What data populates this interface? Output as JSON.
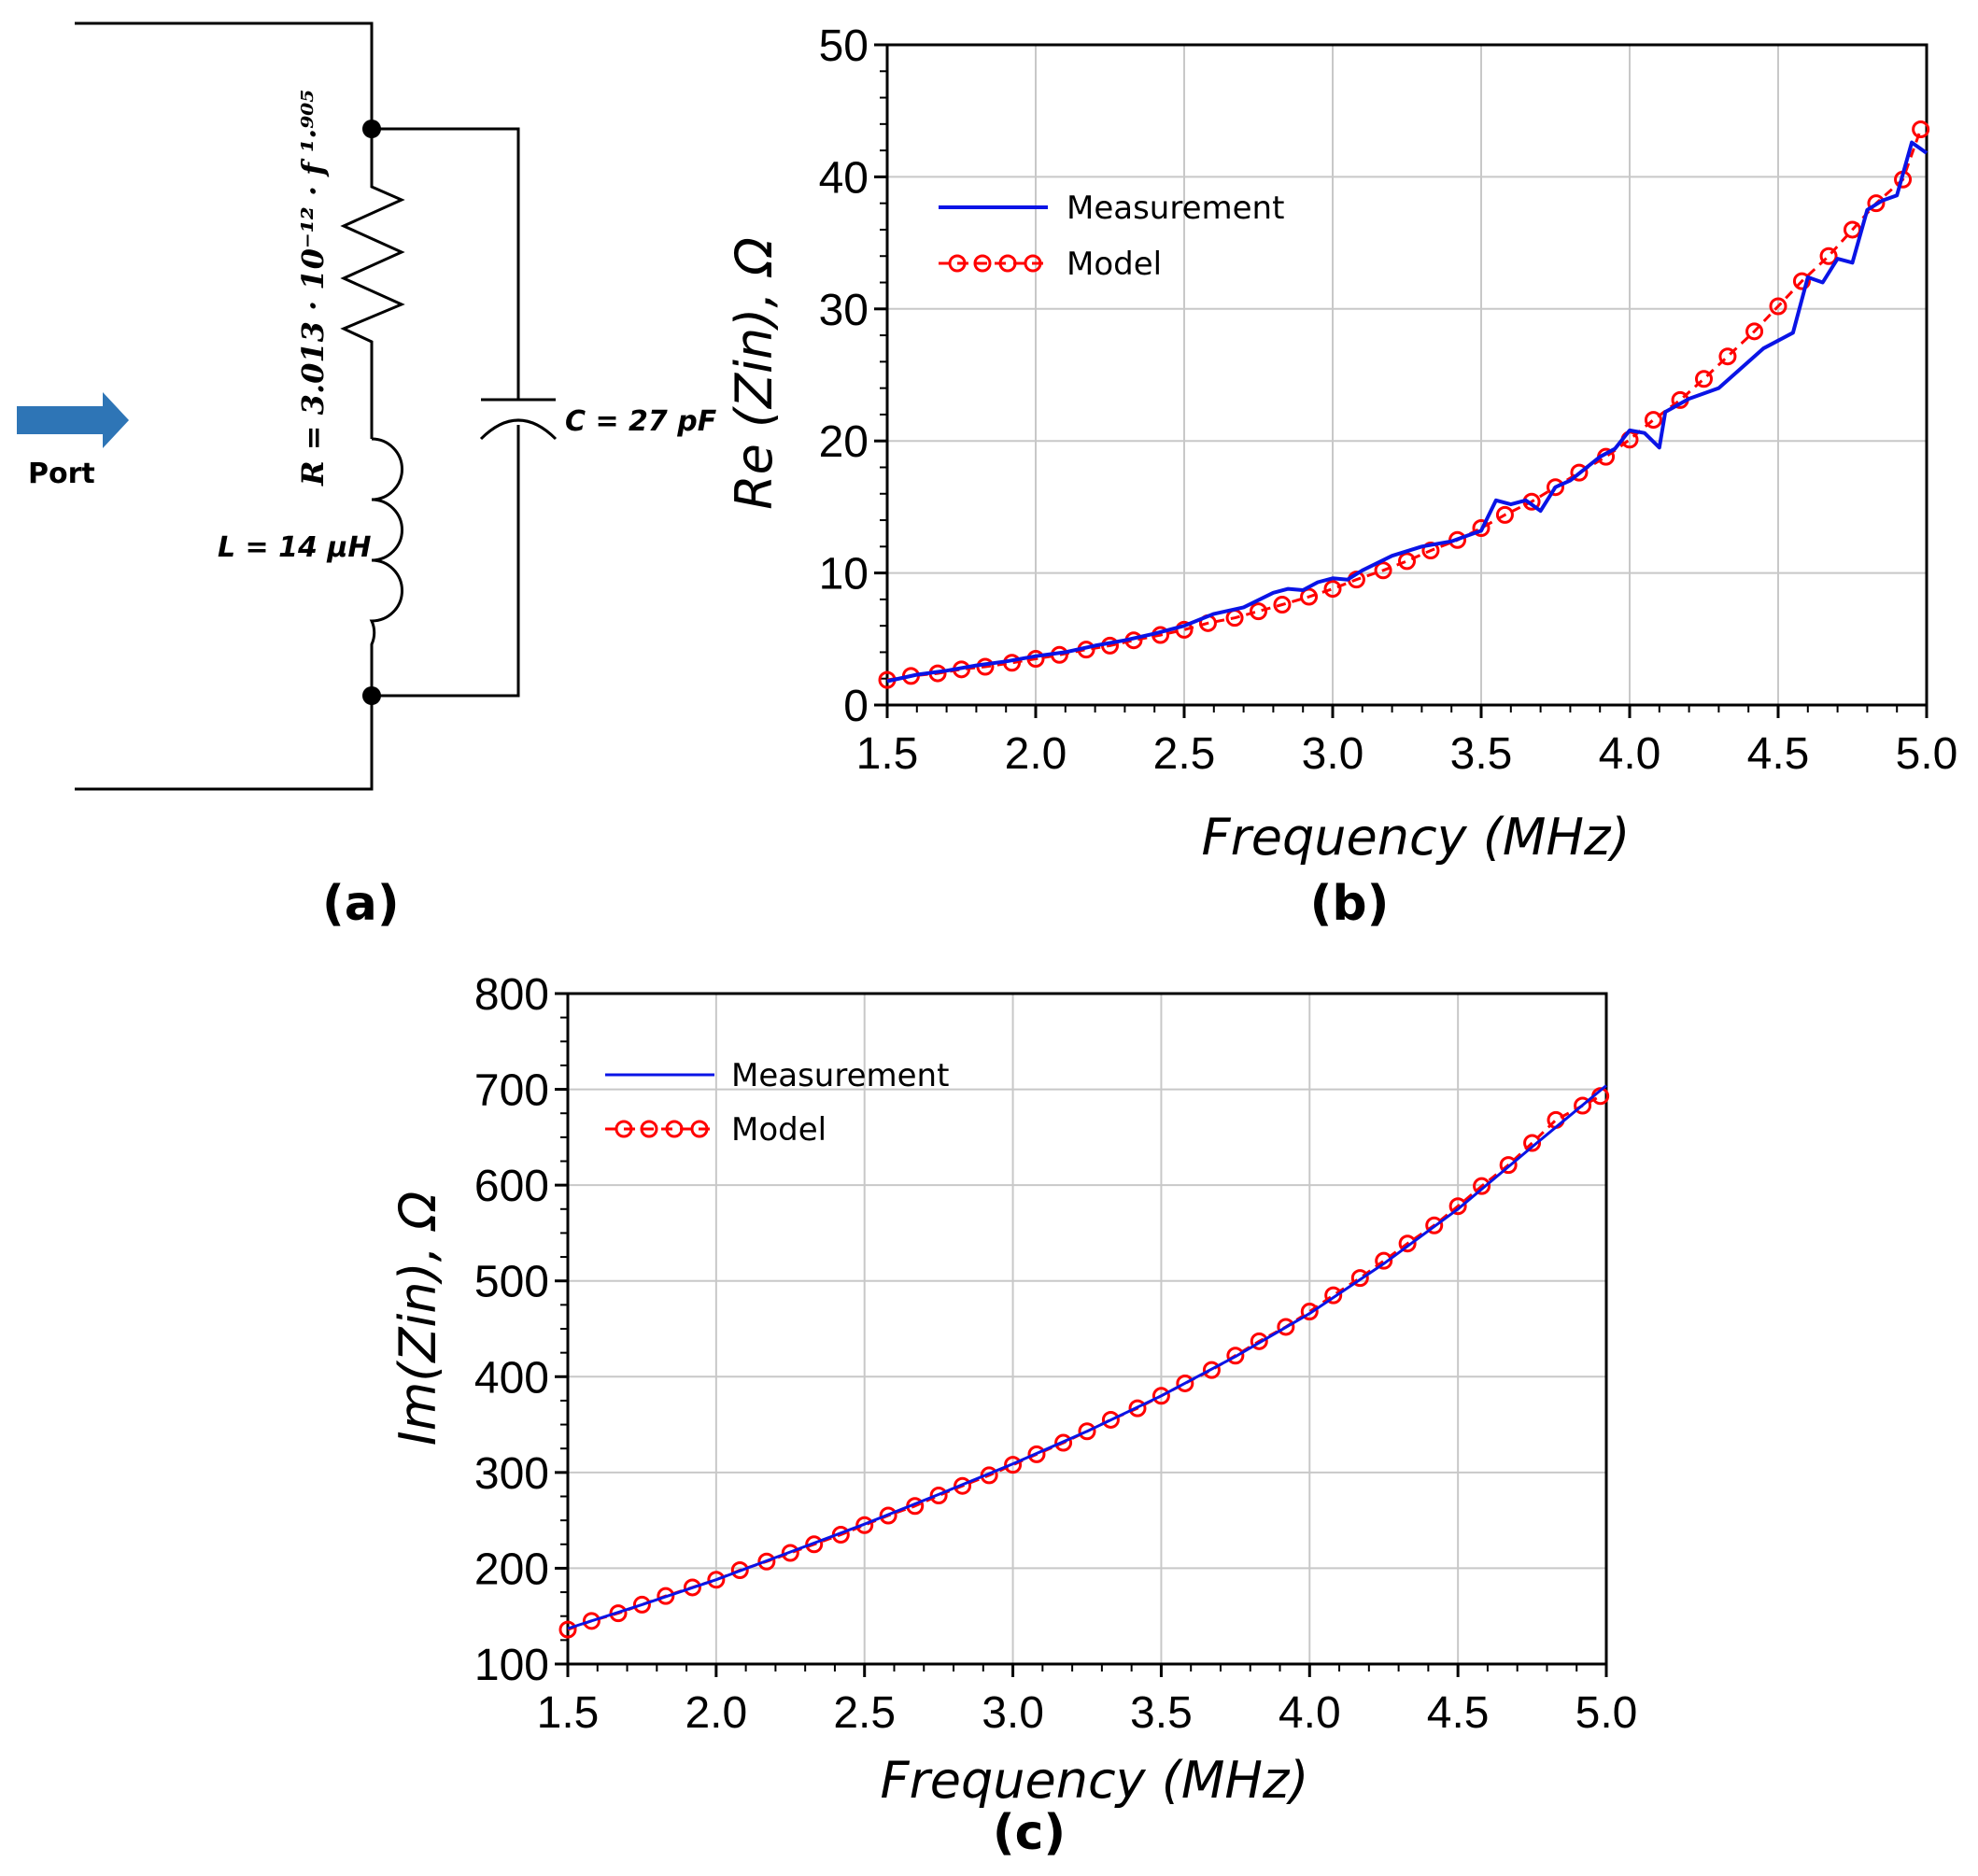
{
  "circuit": {
    "port_label": "Port",
    "resistor_label": "R =  3.013 · 10⁻¹² · f ¹·⁹⁰⁵",
    "capacitor_label": "C = 27 pF",
    "inductor_label": "L = 14 μH",
    "panel_label": "(a)",
    "colors": {
      "wire": "#000000",
      "arrow": "#2e75b6"
    }
  },
  "chart_data": [
    {
      "id": "re",
      "type": "line",
      "title": "",
      "panel_label": "(b)",
      "xlabel": "Frequency (MHz)",
      "ylabel": "Re (Zin), Ω",
      "xlim": [
        1.5,
        5.0
      ],
      "ylim": [
        0,
        50
      ],
      "xticks": [
        "1.5",
        "2.0",
        "2.5",
        "3.0",
        "3.5",
        "4.0",
        "4.5",
        "5.0"
      ],
      "yticks": [
        "0",
        "10",
        "20",
        "30",
        "40",
        "50"
      ],
      "grid": true,
      "legend_position": "top-left",
      "series": [
        {
          "name": "Measurement",
          "color": "#0a14e6",
          "marker": "none",
          "x": [
            1.5,
            1.6,
            1.7,
            1.8,
            1.9,
            2.0,
            2.1,
            2.2,
            2.3,
            2.4,
            2.5,
            2.6,
            2.7,
            2.8,
            2.85,
            2.9,
            2.95,
            3.0,
            3.05,
            3.1,
            3.2,
            3.3,
            3.4,
            3.45,
            3.5,
            3.55,
            3.6,
            3.65,
            3.7,
            3.75,
            3.8,
            3.9,
            3.95,
            4.0,
            4.05,
            4.1,
            4.12,
            4.2,
            4.3,
            4.4,
            4.45,
            4.55,
            4.6,
            4.65,
            4.7,
            4.75,
            4.8,
            4.85,
            4.9,
            4.95,
            5.0
          ],
          "values": [
            1.8,
            2.3,
            2.6,
            3.0,
            3.3,
            3.7,
            4.0,
            4.5,
            4.9,
            5.4,
            6.0,
            6.9,
            7.4,
            8.5,
            8.8,
            8.7,
            9.3,
            9.6,
            9.5,
            10.2,
            11.3,
            12.0,
            12.4,
            12.8,
            13.2,
            15.5,
            15.2,
            15.5,
            14.7,
            16.5,
            17.0,
            18.8,
            19.4,
            20.8,
            20.6,
            19.5,
            22.2,
            23.2,
            24.0,
            26.0,
            27.0,
            28.2,
            32.4,
            32.0,
            33.8,
            33.5,
            37.5,
            38.2,
            38.6,
            42.6,
            41.8
          ]
        },
        {
          "name": "Model",
          "color": "#ff0000",
          "marker": "circle",
          "x": [
            1.5,
            1.58,
            1.67,
            1.75,
            1.83,
            1.92,
            2.0,
            2.08,
            2.17,
            2.25,
            2.33,
            2.42,
            2.5,
            2.58,
            2.67,
            2.75,
            2.83,
            2.92,
            3.0,
            3.08,
            3.17,
            3.25,
            3.33,
            3.42,
            3.5,
            3.58,
            3.67,
            3.75,
            3.83,
            3.92,
            4.0,
            4.08,
            4.17,
            4.25,
            4.33,
            4.42,
            4.5,
            4.58,
            4.67,
            4.75,
            4.83,
            4.92,
            4.98
          ],
          "values": [
            1.9,
            2.2,
            2.4,
            2.7,
            2.9,
            3.2,
            3.5,
            3.8,
            4.2,
            4.5,
            4.9,
            5.3,
            5.7,
            6.2,
            6.6,
            7.1,
            7.6,
            8.2,
            8.8,
            9.5,
            10.2,
            10.9,
            11.7,
            12.5,
            13.4,
            14.4,
            15.4,
            16.5,
            17.6,
            18.8,
            20.1,
            21.6,
            23.1,
            24.7,
            26.4,
            28.3,
            30.2,
            32.1,
            34.0,
            36.0,
            38.0,
            39.8,
            43.6
          ]
        }
      ]
    },
    {
      "id": "im",
      "type": "line",
      "title": "",
      "panel_label": "(c)",
      "xlabel": "Frequency (MHz)",
      "ylabel": "Im(Zin), Ω",
      "xlim": [
        1.5,
        5.0
      ],
      "ylim": [
        100,
        800
      ],
      "xticks": [
        "1.5",
        "2.0",
        "2.5",
        "3.0",
        "3.5",
        "4.0",
        "4.5",
        "5.0"
      ],
      "yticks": [
        "100",
        "200",
        "300",
        "400",
        "500",
        "600",
        "700",
        "800"
      ],
      "grid": true,
      "legend_position": "top-left",
      "series": [
        {
          "name": "Measurement",
          "color": "#0a14e6",
          "marker": "none",
          "x": [
            1.5,
            1.75,
            2.0,
            2.25,
            2.5,
            2.75,
            3.0,
            3.25,
            3.5,
            3.75,
            4.0,
            4.25,
            4.5,
            4.75,
            5.0
          ],
          "values": [
            137,
            162,
            188,
            217,
            246,
            277,
            309,
            343,
            380,
            421,
            466,
            518,
            575,
            640,
            704
          ]
        },
        {
          "name": "Model",
          "color": "#ff0000",
          "marker": "circle",
          "x": [
            1.5,
            1.58,
            1.67,
            1.75,
            1.83,
            1.92,
            2.0,
            2.08,
            2.17,
            2.25,
            2.33,
            2.42,
            2.5,
            2.58,
            2.67,
            2.75,
            2.83,
            2.92,
            3.0,
            3.08,
            3.17,
            3.25,
            3.33,
            3.42,
            3.5,
            3.58,
            3.67,
            3.75,
            3.83,
            3.92,
            4.0,
            4.08,
            4.17,
            4.25,
            4.33,
            4.42,
            4.5,
            4.58,
            4.67,
            4.75,
            4.83,
            4.92,
            4.98
          ],
          "values": [
            136,
            145,
            153,
            162,
            171,
            180,
            188,
            198,
            207,
            216,
            225,
            235,
            245,
            255,
            265,
            276,
            286,
            297,
            308,
            319,
            331,
            343,
            355,
            367,
            380,
            393,
            407,
            422,
            437,
            452,
            468,
            485,
            503,
            521,
            539,
            558,
            578,
            599,
            621,
            644,
            668,
            683,
            693
          ]
        }
      ]
    }
  ]
}
